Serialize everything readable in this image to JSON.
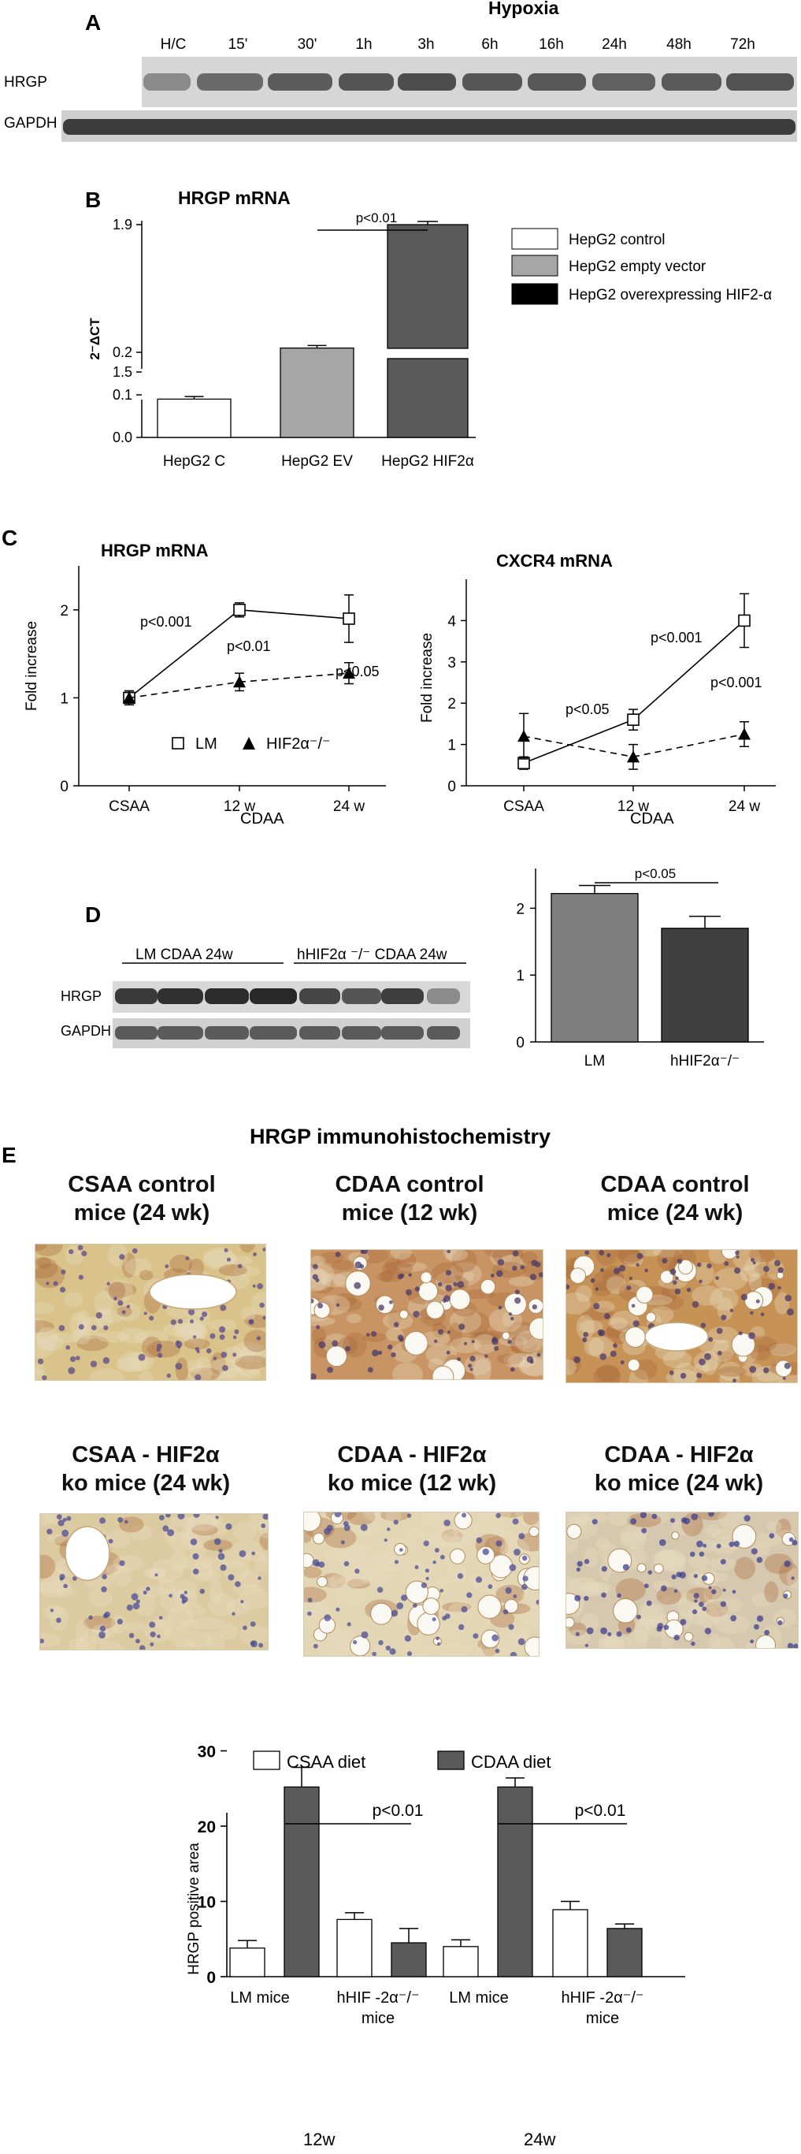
{
  "panel_a": {
    "letter": "A",
    "header": "Hypoxia",
    "lanes": [
      "H/C",
      "15'",
      "30'",
      "1h",
      "3h",
      "6h",
      "16h",
      "24h",
      "48h",
      "72h"
    ],
    "rows": [
      "HRGP",
      "GAPDH"
    ]
  },
  "panel_b": {
    "letter": "B",
    "title": "HRGP mRNA",
    "ylabel": "2⁻ΔCT",
    "legend": [
      "HepG2 control",
      "HepG2 empty vector",
      "HepG2 overexpressing HIF2-α"
    ],
    "sig": "p<0.01"
  },
  "panel_c": {
    "letter": "C",
    "left_title": "HRGP mRNA",
    "right_title": "CXCR4 mRNA",
    "ylabel": "Fold increase",
    "xlabel": "CDAA",
    "legend": [
      "LM",
      "HIF2α⁻/⁻"
    ],
    "left_pvals": [
      "p<0.001",
      "p<0.01",
      "p<0.05"
    ],
    "right_pvals": [
      "p<0.05",
      "p<0.001",
      "p<0.001"
    ]
  },
  "panel_d": {
    "letter": "D",
    "group_lm": "LM CDAA 24w",
    "group_ko": "hHIF2α ⁻/⁻ CDAA 24w",
    "rows": [
      "HRGP",
      "GAPDH"
    ],
    "sig": "p<0.05"
  },
  "panel_e": {
    "letter": "E",
    "heading": "HRGP  immunohistochemistry",
    "tiles": [
      {
        "line1": "CSAA control",
        "line2": "mice (24 wk)"
      },
      {
        "line1": "CDAA control",
        "line2": "mice  (12 wk)"
      },
      {
        "line1": "CDAA control",
        "line2": "mice  (24 wk)"
      },
      {
        "line1": "CSAA  -  HIF2α",
        "line2": "ko mice (24 wk)"
      },
      {
        "line1": "CDAA  - HIF2α",
        "line2": "ko mice  (12 wk)"
      },
      {
        "line1": "CDAA - HIF2α",
        "line2": "ko mice  (24 wk)"
      }
    ],
    "legend": [
      "CSAA diet",
      "CDAA diet"
    ],
    "ylabel": "HRGP positive area",
    "group_labels": [
      "LM mice",
      "hHIF -2α⁻/⁻\nmice",
      "LM mice",
      "hHIF -2α⁻/⁻\nmice"
    ],
    "week_labels": [
      "12w",
      "24w"
    ],
    "sig": [
      "p<0.01",
      "p<0.01"
    ]
  },
  "colors": {
    "white_bar": "#ffffff",
    "light_gray_bar": "#a6a6a6",
    "dark_gray_bar": "#595959",
    "black": "#000000",
    "dark_bar_d": "#404040",
    "gray_bar_d": "#7f7f7f",
    "cdaa_bar": "#5a5a5a"
  },
  "chart_data": [
    {
      "id": "B",
      "type": "bar",
      "title": "HRGP mRNA",
      "ylabel": "2⁻ΔCT",
      "categories": [
        "HepG2 C",
        "HepG2 EV",
        "HepG2 HIF2α"
      ],
      "values": [
        0.09,
        0.21,
        1.9
      ],
      "errors": [
        0.006,
        0.006,
        0.01
      ],
      "axis_broken": true,
      "lower_ticks": [
        "0.0",
        "0.1",
        "0.2"
      ],
      "upper_ticks": [
        "1.5",
        "1.9"
      ],
      "significance": {
        "between": [
          "HepG2 EV",
          "HepG2 HIF2α"
        ],
        "label": "p<0.01"
      }
    },
    {
      "id": "C-left",
      "type": "line",
      "title": "HRGP mRNA",
      "ylabel": "Fold increase",
      "xlabel": "CDAA",
      "categories": [
        "CSAA",
        "12 w",
        "24 w"
      ],
      "yticks": [
        "0",
        "1",
        "2"
      ],
      "ylim": [
        0,
        2.5
      ],
      "series": [
        {
          "name": "LM",
          "values": [
            1.0,
            2.0,
            1.9
          ],
          "errors": [
            0.08,
            0.08,
            0.27
          ]
        },
        {
          "name": "HIF2α⁻/⁻",
          "values": [
            1.0,
            1.18,
            1.28
          ],
          "errors": [
            0.06,
            0.1,
            0.12
          ]
        }
      ]
    },
    {
      "id": "C-right",
      "type": "line",
      "title": "CXCR4 mRNA",
      "ylabel": "Fold increase",
      "xlabel": "CDAA",
      "categories": [
        "CSAA",
        "12 w",
        "24 w"
      ],
      "yticks": [
        "0",
        "1",
        "2",
        "3",
        "4"
      ],
      "ylim": [
        0,
        5
      ],
      "series": [
        {
          "name": "LM",
          "values": [
            0.55,
            1.6,
            4.0
          ],
          "errors": [
            0.15,
            0.25,
            0.65
          ]
        },
        {
          "name": "HIF2α⁻/⁻",
          "values": [
            1.2,
            0.7,
            1.25
          ],
          "errors": [
            0.55,
            0.3,
            0.3
          ]
        }
      ]
    },
    {
      "id": "D",
      "type": "bar",
      "categories": [
        "LM",
        "hHIF2α⁻/⁻"
      ],
      "values": [
        2.22,
        1.7
      ],
      "errors": [
        0.12,
        0.18
      ],
      "yticks": [
        "0",
        "1",
        "2"
      ],
      "ylim": [
        0,
        2.5
      ],
      "significance": {
        "label": "p<0.05"
      }
    },
    {
      "id": "E",
      "type": "bar",
      "ylabel": "HRGP positive area",
      "yticks": [
        "0",
        "10",
        "20",
        "30"
      ],
      "ylim": [
        0,
        30
      ],
      "categories": [
        "LM mice 12w",
        "hHIF -2α⁻/⁻ mice 12w",
        "LM mice 24w",
        "hHIF -2α⁻/⁻ mice 24w"
      ],
      "series": [
        {
          "name": "CSAA diet",
          "values": [
            3.8,
            7.6,
            4.0,
            8.9
          ],
          "errors": [
            1.0,
            0.9,
            0.9,
            1.1
          ]
        },
        {
          "name": "CDAA diet",
          "values": [
            25.2,
            4.5,
            25.2,
            6.4
          ],
          "errors": [
            2.6,
            1.9,
            1.2,
            0.6
          ]
        }
      ]
    }
  ]
}
